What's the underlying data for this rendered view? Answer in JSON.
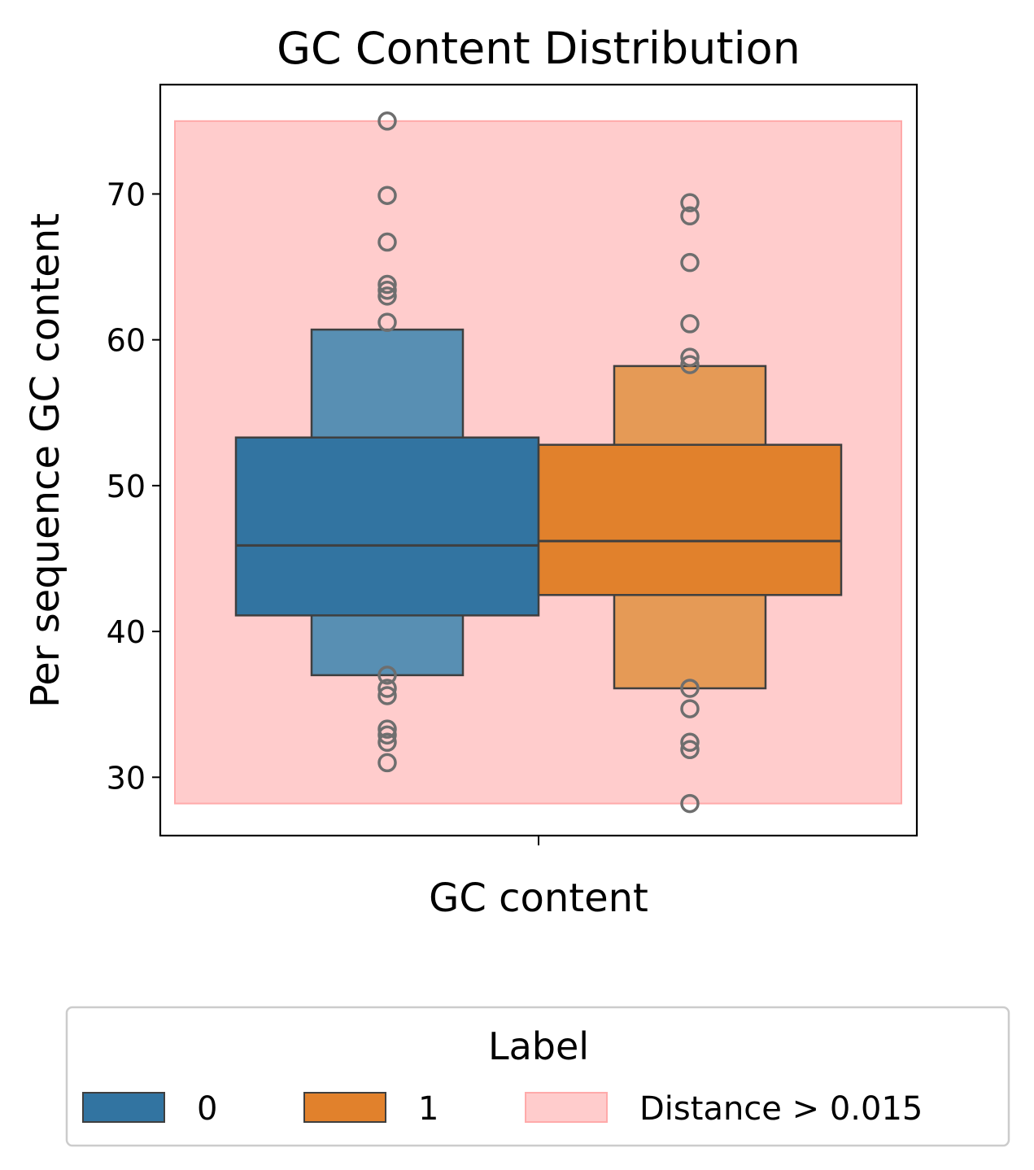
{
  "chart_data": {
    "type": "boxen",
    "title": "GC Content Distribution",
    "xlabel": "GC content",
    "ylabel": "Per sequence GC content",
    "ylim": [
      26,
      77.5
    ],
    "yticks": [
      30,
      40,
      50,
      60,
      70
    ],
    "categories": [
      "GC content"
    ],
    "series": [
      {
        "name": "0",
        "color": "#3274a1",
        "outer_color": "#588fb3",
        "median": 45.9,
        "levels": [
          {
            "low": 41.1,
            "high": 53.3
          },
          {
            "low": 37.0,
            "high": 60.7
          }
        ],
        "outliers": [
          75.0,
          69.9,
          66.7,
          63.8,
          63.4,
          63.0,
          61.2,
          37.0,
          36.1,
          35.6,
          33.3,
          32.9,
          32.4,
          31.0
        ]
      },
      {
        "name": "1",
        "color": "#e1812c",
        "outer_color": "#e59a56",
        "median": 46.2,
        "levels": [
          {
            "low": 42.5,
            "high": 52.8
          },
          {
            "low": 36.1,
            "high": 58.2
          }
        ],
        "outliers": [
          69.4,
          68.5,
          65.3,
          61.1,
          58.8,
          58.3,
          36.1,
          34.7,
          32.4,
          31.9,
          28.2
        ]
      }
    ],
    "shaded_region": {
      "label": "Distance > 0.015",
      "y_low": 28.2,
      "y_high": 75.0,
      "color": "#ffcccc",
      "edge_color": "#ffaaaa"
    },
    "legend": {
      "title": "Label",
      "position": "bottom-center",
      "entries": [
        "0",
        "1",
        "Distance > 0.015"
      ]
    },
    "grid": false
  }
}
